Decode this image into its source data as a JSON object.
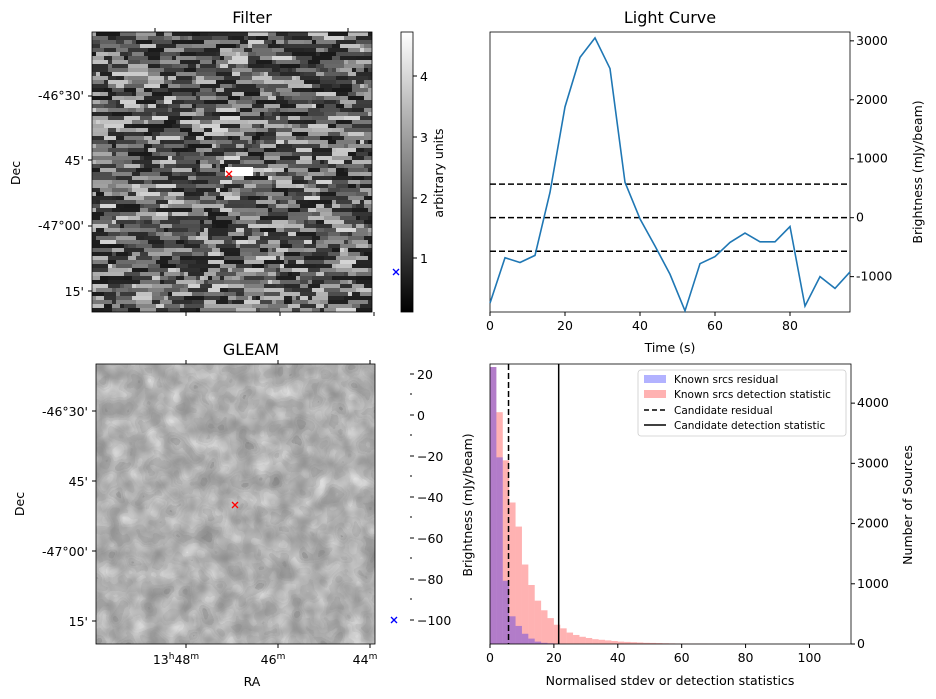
{
  "colors": {
    "curve": "#1f77b4",
    "residual": "#0000ff",
    "detection": "#ff0000",
    "candidate_marker": "#ff0000",
    "offset_marker": "#0000ff",
    "axis": "#000000"
  },
  "filter_panel": {
    "title": "Filter",
    "ylabel": "Dec",
    "dec_ticks": [
      "-46°30'",
      "45'",
      "-47°00'",
      "15'"
    ],
    "colorbar_label": "arbitrary units",
    "colorbar_ticks": [
      "1",
      "2",
      "3",
      "4"
    ],
    "colorbar_range": [
      0.2,
      4.7
    ]
  },
  "gleam_panel": {
    "title": "GLEAM",
    "ylabel": "Dec",
    "xlabel": "RA",
    "dec_ticks": [
      "-46°30'",
      "45'",
      "-47°00'",
      "15'"
    ],
    "ra_ticks": [
      {
        "h": "13",
        "hs": "h",
        "m": "48",
        "ms": "m"
      },
      {
        "h": "",
        "hs": "",
        "m": "46",
        "ms": "m"
      },
      {
        "h": "",
        "hs": "",
        "m": "44",
        "ms": "m"
      }
    ],
    "colorbar_ticks": [
      "20",
      "0",
      "−20",
      "−40",
      "−60",
      "−80",
      "−100"
    ]
  },
  "chart_data": [
    {
      "type": "line",
      "title": "Light Curve",
      "xlabel": "Time (s)",
      "ylabel": "Brightness (mJy/beam)",
      "x": [
        0,
        4,
        8,
        12,
        16,
        20,
        24,
        28,
        32,
        36,
        40,
        44,
        48,
        52,
        56,
        60,
        64,
        68,
        72,
        76,
        80,
        84,
        88,
        92,
        96
      ],
      "y": [
        -1450,
        -680,
        -760,
        -640,
        430,
        1880,
        2720,
        3050,
        2530,
        600,
        -20,
        -480,
        -960,
        -1580,
        -780,
        -660,
        -420,
        -260,
        -410,
        -410,
        -150,
        -1500,
        -1000,
        -1200,
        -920
      ],
      "hlines": [
        570,
        0,
        -570
      ],
      "xlim": [
        0,
        96
      ],
      "ylim": [
        -1600,
        3150
      ],
      "xticks": [
        0,
        20,
        40,
        60,
        80
      ],
      "yticks": [
        3000,
        2000,
        1000,
        0,
        -1000
      ]
    },
    {
      "type": "histogram",
      "xlabel": "Normalised stdev or detection statistics",
      "ylabel_left": "Brightness (mJy/beam)",
      "ylabel_right": "Number of Sources",
      "xlim": [
        0,
        113
      ],
      "ylim": [
        0,
        4650
      ],
      "xticks": [
        0,
        20,
        40,
        60,
        80,
        100
      ],
      "yticks": [
        0,
        1000,
        2000,
        3000,
        4000
      ],
      "bin_width": 2,
      "series": [
        {
          "name": "Known srcs residual",
          "color": "blue",
          "bin_start": 0,
          "counts": [
            4600,
            3100,
            1050,
            460,
            300,
            170,
            90,
            40,
            20,
            12,
            6,
            3
          ]
        },
        {
          "name": "Known srcs detection statistic",
          "color": "red",
          "bin_start": 0,
          "counts": [
            4600,
            3850,
            3050,
            2350,
            1950,
            1320,
            980,
            720,
            560,
            430,
            320,
            260,
            190,
            150,
            120,
            100,
            80,
            70,
            60,
            50,
            40,
            35,
            30,
            25,
            20,
            18,
            15,
            12,
            10,
            8,
            7,
            6,
            5,
            5,
            4,
            4,
            3,
            3,
            3,
            2,
            2,
            2,
            2,
            2,
            2,
            2,
            2,
            2,
            2,
            2,
            2,
            2,
            2,
            2
          ]
        }
      ],
      "vlines": [
        {
          "name": "Candidate residual",
          "x": 5.8,
          "style": "dashed"
        },
        {
          "name": "Candidate detection statistic",
          "x": 21.5,
          "style": "solid"
        }
      ],
      "legend_position": "top-right"
    }
  ]
}
